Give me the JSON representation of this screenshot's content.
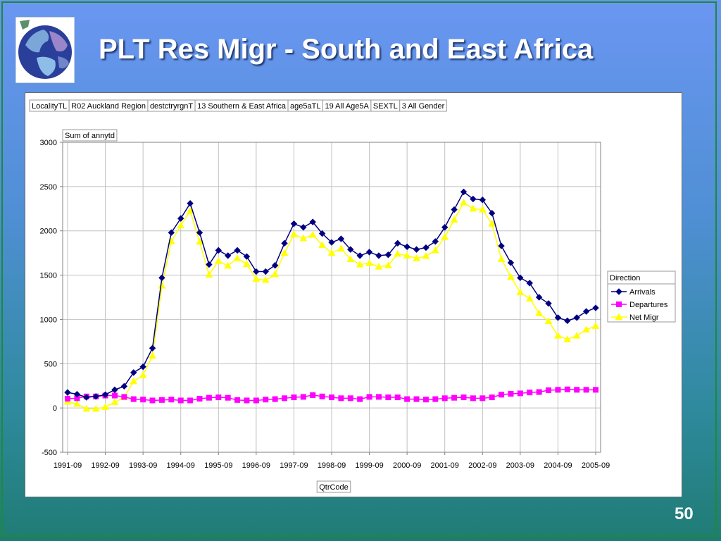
{
  "slide": {
    "title": "PLT Res Migr - South and East Africa",
    "page_number": "50",
    "logo_icon": "globe-icon"
  },
  "filters": [
    "LocalityTL",
    "R02 Auckland Region",
    "destctryrgnT",
    "13 Southern & East Africa",
    "age5aTL",
    "19 All Age5A",
    "SEXTL",
    "3 All Gender"
  ],
  "chart_data": {
    "type": "line",
    "ylabel": "Sum of annytd",
    "xlabel": "QtrCode",
    "ylim": [
      -500,
      3000
    ],
    "yticks": [
      -500,
      0,
      500,
      1000,
      1500,
      2000,
      2500,
      3000
    ],
    "xticks": [
      "1991-09",
      "1992-09",
      "1993-09",
      "1994-09",
      "1995-09",
      "1996-09",
      "1997-09",
      "1998-09",
      "1999-09",
      "2000-09",
      "2001-09",
      "2002-09",
      "2003-09",
      "2004-09",
      "2005-09"
    ],
    "grid": true,
    "legend_title": "Direction",
    "legend_position": "right",
    "x": [
      "1991-09",
      "1991-12",
      "1992-03",
      "1992-06",
      "1992-09",
      "1992-12",
      "1993-03",
      "1993-06",
      "1993-09",
      "1993-12",
      "1994-03",
      "1994-06",
      "1994-09",
      "1994-12",
      "1995-03",
      "1995-06",
      "1995-09",
      "1995-12",
      "1996-03",
      "1996-06",
      "1996-09",
      "1996-12",
      "1997-03",
      "1997-06",
      "1997-09",
      "1997-12",
      "1998-03",
      "1998-06",
      "1998-09",
      "1998-12",
      "1999-03",
      "1999-06",
      "1999-09",
      "1999-12",
      "2000-03",
      "2000-06",
      "2000-09",
      "2000-12",
      "2001-03",
      "2001-06",
      "2001-09",
      "2001-12",
      "2002-03",
      "2002-06",
      "2002-09",
      "2002-12",
      "2003-03",
      "2003-06",
      "2003-09",
      "2003-12",
      "2004-03",
      "2004-06",
      "2004-09",
      "2004-12",
      "2005-03",
      "2005-06",
      "2005-09"
    ],
    "series": [
      {
        "name": "Arrivals",
        "color": "#000080",
        "marker": "diamond",
        "values": [
          175,
          155,
          120,
          130,
          150,
          205,
          245,
          400,
          465,
          675,
          1470,
          1980,
          2140,
          2310,
          1980,
          1620,
          1780,
          1720,
          1780,
          1710,
          1540,
          1540,
          1610,
          1860,
          2080,
          2040,
          2100,
          1970,
          1870,
          1910,
          1790,
          1720,
          1760,
          1720,
          1730,
          1860,
          1820,
          1790,
          1810,
          1880,
          2040,
          2240,
          2440,
          2360,
          2350,
          2200,
          1830,
          1640,
          1470,
          1410,
          1250,
          1180,
          1020,
          985,
          1020,
          1090,
          1130
        ]
      },
      {
        "name": "Departures",
        "color": "#ff00ff",
        "marker": "square",
        "values": [
          105,
          110,
          130,
          130,
          140,
          140,
          125,
          100,
          95,
          85,
          90,
          95,
          85,
          85,
          105,
          115,
          120,
          115,
          90,
          85,
          85,
          95,
          100,
          110,
          120,
          125,
          145,
          130,
          120,
          110,
          110,
          100,
          125,
          125,
          120,
          120,
          100,
          100,
          95,
          100,
          110,
          115,
          120,
          110,
          110,
          120,
          150,
          160,
          165,
          175,
          180,
          200,
          205,
          210,
          205,
          205,
          205
        ]
      },
      {
        "name": "Net Migr",
        "color": "#ffff00",
        "marker": "triangle",
        "values": [
          70,
          45,
          -10,
          -10,
          10,
          65,
          120,
          300,
          370,
          590,
          1380,
          1880,
          2060,
          2225,
          1875,
          1505,
          1660,
          1605,
          1690,
          1625,
          1455,
          1445,
          1510,
          1750,
          1960,
          1915,
          1955,
          1840,
          1750,
          1800,
          1680,
          1620,
          1635,
          1595,
          1610,
          1740,
          1720,
          1690,
          1715,
          1780,
          1930,
          2125,
          2320,
          2250,
          2240,
          2080,
          1680,
          1480,
          1305,
          1235,
          1070,
          980,
          815,
          775,
          815,
          885,
          925
        ]
      }
    ]
  }
}
